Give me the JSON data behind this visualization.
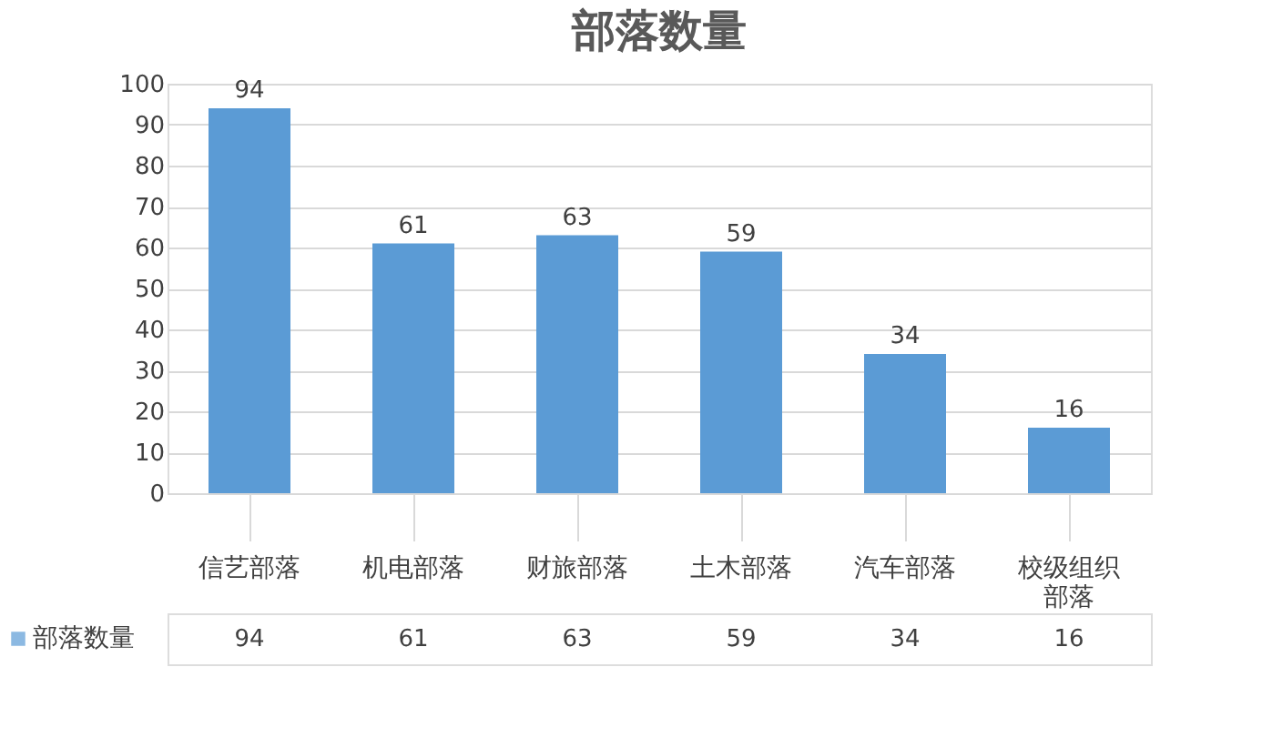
{
  "chart_data": {
    "type": "bar",
    "title": "部落数量",
    "categories": [
      "信艺部落",
      "机电部落",
      "财旅部落",
      "土木部落",
      "汽车部落",
      "校级组织部落"
    ],
    "series": [
      {
        "name": "部落数量",
        "color": "#5b9bd5",
        "values": [
          94,
          61,
          63,
          59,
          34,
          16
        ]
      }
    ],
    "annotations": [
      "94",
      "61",
      "63",
      "59",
      "34",
      "16"
    ],
    "ylim": [
      0,
      100
    ],
    "yticks": [
      0,
      10,
      20,
      30,
      40,
      50,
      60,
      70,
      80,
      90,
      100
    ],
    "grid": "y",
    "legend": "bottom",
    "data_labels": true
  }
}
